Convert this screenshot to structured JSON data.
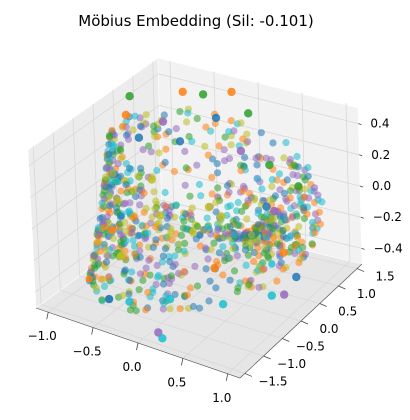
{
  "chart_data": {
    "type": "scatter",
    "projection": "3d",
    "title": "Möbius Embedding (Sil: -0.101)",
    "xlabel": "",
    "ylabel": "",
    "zlabel": "",
    "x_ticks": [
      "−1.0",
      "−0.5",
      "0.0",
      "0.5",
      "1.0"
    ],
    "y_ticks": [
      "−1.5",
      "−1.0",
      "−0.5",
      "0.0",
      "0.5",
      "1.0",
      "1.5"
    ],
    "z_ticks": [
      "−0.4",
      "−0.2",
      "0.0",
      "0.2",
      "0.4"
    ],
    "xlim": [
      -1.2,
      1.3
    ],
    "ylim": [
      -1.5,
      1.6
    ],
    "zlim": [
      -0.5,
      0.5
    ],
    "grid": true,
    "series": [
      {
        "color": "#1f77b4",
        "points": [
          [
            -1.0,
            0.7,
            0.2
          ],
          [
            -0.8,
            1.3,
            0.1
          ],
          [
            -0.4,
            1.4,
            0.3
          ],
          [
            0.3,
            1.2,
            -0.1
          ],
          [
            0.8,
            0.9,
            -0.4
          ],
          [
            -0.6,
            -0.9,
            -0.45
          ]
        ]
      },
      {
        "color": "#ff7f0e",
        "points": [
          [
            -1.0,
            0.4,
            0.4
          ],
          [
            -0.7,
            1.2,
            0.45
          ],
          [
            -0.2,
            1.4,
            0.5
          ],
          [
            -0.9,
            -0.2,
            -0.2
          ],
          [
            0.2,
            0.1,
            -0.3
          ],
          [
            0.6,
            1.0,
            -0.3
          ]
        ]
      },
      {
        "color": "#2ca02c",
        "points": [
          [
            -0.5,
            1.3,
            0.45
          ],
          [
            0.0,
            1.4,
            0.4
          ],
          [
            0.4,
            1.1,
            0.2
          ],
          [
            0.7,
            1.2,
            0.1
          ],
          [
            -1.0,
            0.5,
            0.5
          ]
        ]
      },
      {
        "color": "#9467bd",
        "points": [
          [
            -0.8,
            0.9,
            0.3
          ],
          [
            0.0,
            1.2,
            0.2
          ],
          [
            0.6,
            0.8,
            0.0
          ],
          [
            0.1,
            -1.1,
            -0.5
          ],
          [
            0.9,
            0.4,
            -0.4
          ]
        ]
      },
      {
        "color": "#bcbd22",
        "points": [
          [
            -0.6,
            0.2,
            0.1
          ],
          [
            -0.3,
            -0.2,
            0.0
          ],
          [
            0.1,
            0.2,
            0.05
          ],
          [
            -0.9,
            0.0,
            -0.4
          ],
          [
            0.4,
            -0.1,
            0.1
          ]
        ]
      },
      {
        "color": "#17becf",
        "points": [
          [
            -0.4,
            -0.8,
            -0.45
          ],
          [
            0.0,
            -0.6,
            -0.4
          ],
          [
            0.5,
            -0.3,
            -0.4
          ],
          [
            0.9,
            0.1,
            -0.35
          ],
          [
            0.2,
            -1.2,
            -0.5
          ]
        ]
      }
    ]
  }
}
